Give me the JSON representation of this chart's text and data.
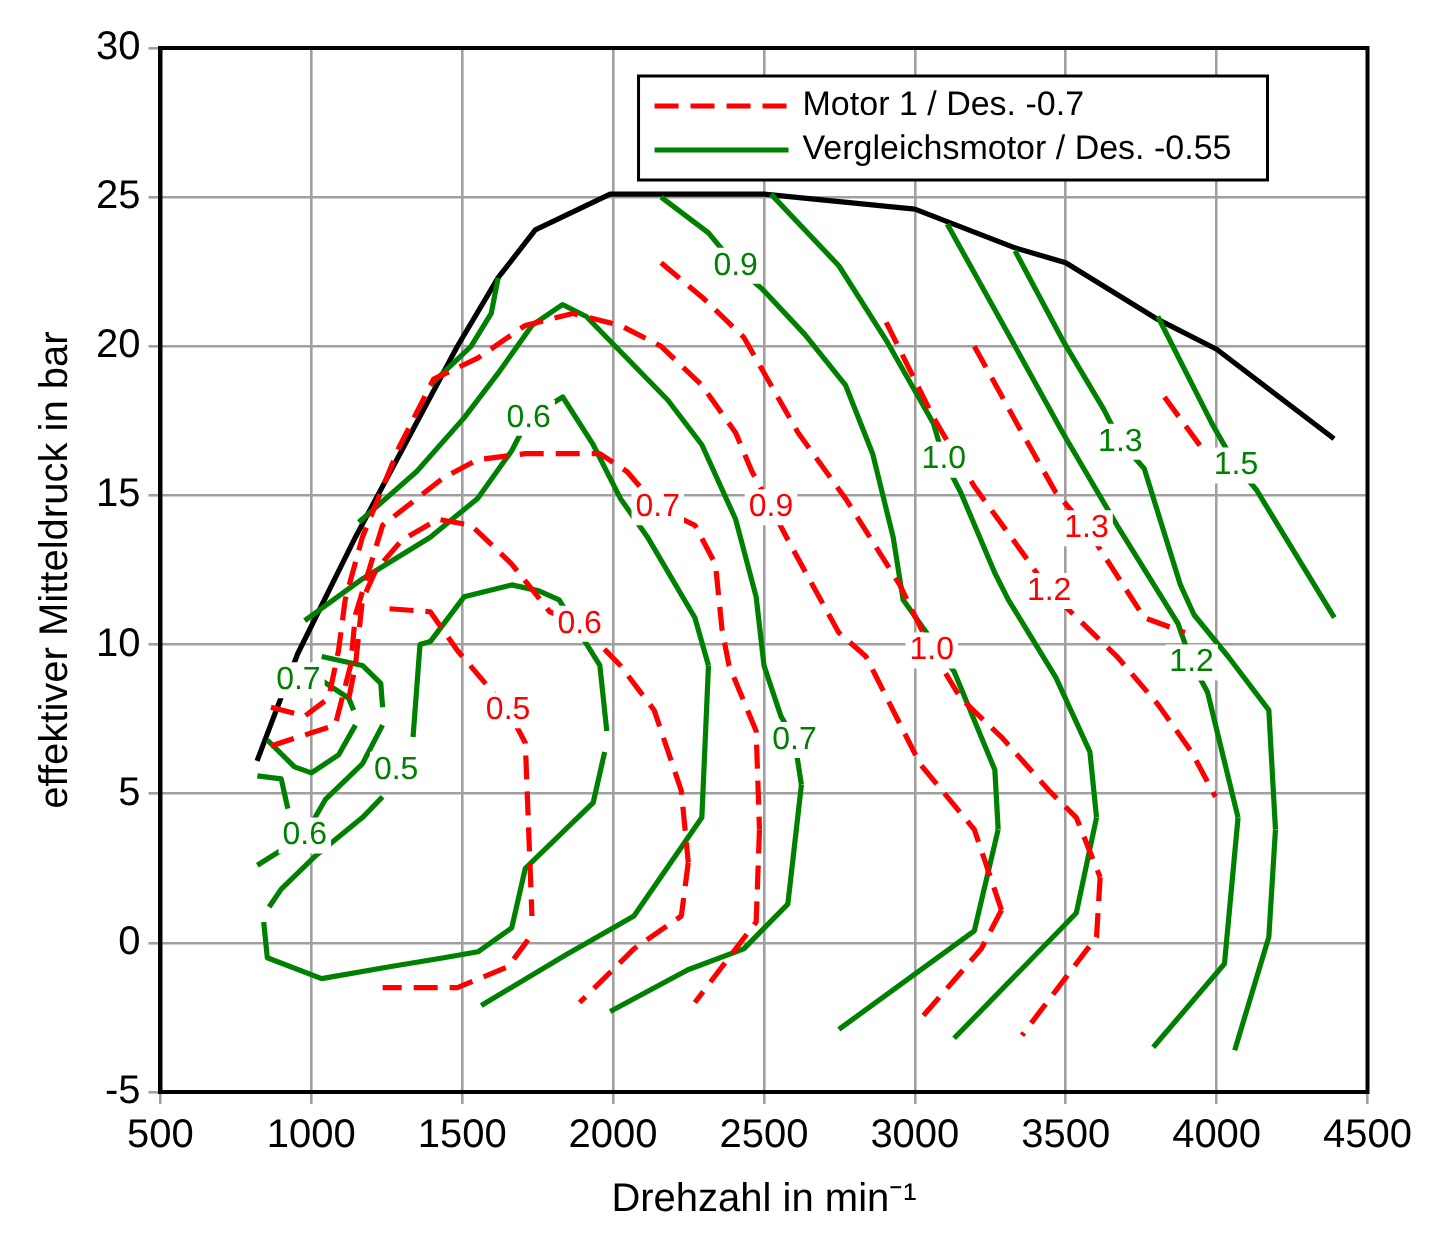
{
  "chart_data": {
    "type": "line",
    "xlabel": "Drehzahl in min⁻¹",
    "ylabel": "effektiver Mitteldruck in bar",
    "xlim": [
      500,
      4500
    ],
    "xticks": [
      500,
      1000,
      1500,
      2000,
      2500,
      3000,
      3500,
      4000,
      4500
    ],
    "ylim": [
      -5,
      30
    ],
    "yticks": [
      -5,
      0,
      5,
      10,
      15,
      20,
      25,
      30
    ],
    "grid": true,
    "legend": "top right",
    "series": [
      {
        "name": "Motor 1 / Des. -0.7",
        "color": "#ff0000",
        "line_style": "dashed",
        "x": [
          866,
          978,
          1057,
          1090,
          1112,
          1169,
          1290,
          1405,
          1551,
          1709,
          1866,
          2024,
          2159,
          2294,
          2406,
          2460,
          2523,
          2590,
          2748,
          2838,
          3017,
          3197,
          3287
        ],
        "values": [
          7.9,
          7.6,
          8.2,
          9.8,
          11.5,
          13.6,
          16.6,
          18.9,
          19.6,
          20.7,
          21.1,
          20.7,
          20.0,
          18.7,
          17.1,
          15.8,
          14.6,
          13.3,
          10.4,
          9.6,
          6.0,
          3.8,
          1.1
        ]
      },
      {
        "color": "#ff0000",
        "line_style": "dashed",
        "x": [
          3287,
          3220,
          3006
        ],
        "values": [
          1.1,
          -0.2,
          -2.7
        ]
      },
      {
        "color": "#ff0000",
        "line_style": "dashed",
        "x": [
          2159,
          2300,
          2433,
          2613,
          2770,
          2950,
          3056,
          3152,
          3287,
          3445,
          3535,
          3614
        ],
        "values": [
          22.8,
          21.6,
          20.3,
          17.1,
          14.9,
          12.0,
          9.8,
          8.2,
          6.9,
          5.1,
          4.2,
          2.2
        ]
      },
      {
        "color": "#ff0000",
        "line_style": "dashed",
        "x": [
          3614,
          3602,
          3355
        ],
        "values": [
          2.2,
          0.2,
          -3.1
        ]
      },
      {
        "color": "#ff0000",
        "line_style": "dashed",
        "x": [
          866,
          1079,
          1130,
          1146,
          1236,
          1439,
          1551,
          1709,
          1956,
          2046,
          2148,
          2271,
          2339,
          2361,
          2384,
          2474,
          2485
        ],
        "values": [
          6.6,
          7.3,
          9.3,
          11.0,
          14.0,
          15.6,
          16.2,
          16.4,
          16.4,
          15.8,
          14.6,
          14.0,
          12.7,
          10.5,
          9.3,
          7.1,
          3.8
        ]
      },
      {
        "color": "#ff0000",
        "line_style": "dashed",
        "x": [
          2485,
          2474,
          2271
        ],
        "values": [
          3.8,
          0.7,
          -2.0
        ]
      },
      {
        "color": "#ff0000",
        "line_style": "dashed",
        "x": [
          1124,
          1146,
          1169,
          1214,
          1300,
          1420,
          1530,
          1664,
          1790,
          1889,
          2024,
          2136,
          2226,
          2249
        ],
        "values": [
          8.2,
          9.3,
          11.5,
          12.5,
          13.5,
          14.2,
          14.0,
          12.7,
          11.1,
          10.7,
          9.3,
          7.8,
          5.1,
          2.7
        ]
      },
      {
        "color": "#ff0000",
        "line_style": "dashed",
        "x": [
          2249,
          2226,
          2069,
          1889
        ],
        "values": [
          2.7,
          0.9,
          -0.2,
          -2.0
        ]
      },
      {
        "color": "#ff0000",
        "line_style": "dashed",
        "x": [
          1259,
          1394,
          1484,
          1652,
          1709,
          1720,
          1731
        ],
        "values": [
          11.2,
          11.1,
          9.8,
          7.8,
          6.7,
          3.8,
          0.9
        ]
      },
      {
        "color": "#ff0000",
        "line_style": "dashed",
        "x": [
          1718,
          1652,
          1484,
          1236
        ],
        "values": [
          0.1,
          -0.8,
          -1.5,
          -1.5
        ]
      },
      {
        "color": "#ff0000",
        "line_style": "dashed",
        "x": [
          2905,
          3062,
          3197,
          3355,
          3445,
          3557,
          3670,
          3805,
          3917,
          3996
        ],
        "values": [
          20.8,
          17.6,
          15.3,
          13.1,
          11.8,
          10.7,
          9.6,
          8.0,
          6.4,
          4.9
        ]
      },
      {
        "color": "#ff0000",
        "line_style": "dashed",
        "x": [
          3197,
          3355,
          3467,
          3569,
          3760,
          3895
        ],
        "values": [
          20.0,
          17.1,
          15.1,
          13.9,
          10.9,
          10.4
        ]
      },
      {
        "color": "#ff0000",
        "line_style": "dashed",
        "x": [
          3827,
          3950
        ],
        "values": [
          18.3,
          16.6
        ]
      },
      {
        "name": "Vergleichsmotor / Des. -0.55",
        "color": "#008000",
        "line_style": "solid",
        "x": [
          1337,
          1360,
          1394,
          1506,
          1664,
          1754,
          1821,
          1956,
          1979
        ],
        "values": [
          6.9,
          10.0,
          10.1,
          11.6,
          12.0,
          11.8,
          11.5,
          9.3,
          7.1
        ]
      },
      {
        "color": "#008000",
        "line_style": "solid",
        "x": [
          1972,
          1934,
          1709,
          1664,
          1552,
          1439,
          1259,
          1034,
          854,
          842
        ],
        "values": [
          6.4,
          4.7,
          2.5,
          0.5,
          -0.3,
          -0.5,
          -0.8,
          -1.2,
          -0.5,
          0.7
        ]
      },
      {
        "color": "#008000",
        "line_style": "solid",
        "x": [
          860,
          900,
          1012,
          1169,
          1236
        ],
        "values": [
          1.2,
          1.8,
          2.9,
          4.2,
          4.9
        ]
      },
      {
        "color": "#008000",
        "line_style": "solid",
        "x": [
          821,
          978,
          1046,
          1169,
          1236
        ],
        "values": [
          2.6,
          3.6,
          4.8,
          6.0,
          7.3
        ]
      },
      {
        "color": "#008000",
        "line_style": "solid",
        "x": [
          1236,
          1230,
          1169,
          1034
        ],
        "values": [
          7.9,
          8.7,
          9.3,
          9.6
        ]
      },
      {
        "color": "#008000",
        "line_style": "solid",
        "x": [
          854,
          944,
          1000,
          1090,
          1146
        ],
        "values": [
          6.8,
          5.9,
          5.7,
          6.3,
          7.3
        ]
      },
      {
        "color": "#008000",
        "line_style": "solid",
        "x": [
          1140,
          1124,
          1034,
          957
        ],
        "values": [
          7.8,
          8.2,
          8.8,
          8.8
        ]
      },
      {
        "color": "#008000",
        "line_style": "solid",
        "x": [
          821,
          900,
          922
        ],
        "values": [
          5.6,
          5.5,
          4.5
        ]
      },
      {
        "color": "#008000",
        "line_style": "solid",
        "x": [
          1619,
          1596,
          1529,
          1394
        ],
        "values": [
          22.3,
          21.1,
          20.0,
          18.7
        ]
      },
      {
        "color": "#008000",
        "line_style": "solid",
        "x": [
          978,
          1169,
          1394,
          1551,
          1664,
          1720,
          1833,
          1934,
          2024,
          2114,
          2271,
          2316
        ],
        "values": [
          10.8,
          12.2,
          13.6,
          14.9,
          16.5,
          17.6,
          18.3,
          16.7,
          14.9,
          13.6,
          10.9,
          9.3
        ]
      },
      {
        "color": "#008000",
        "line_style": "solid",
        "x": [
          2316,
          2294,
          2069,
          1844,
          1563
        ],
        "values": [
          9.3,
          4.2,
          0.9,
          -0.4,
          -2.1
        ]
      },
      {
        "color": "#008000",
        "line_style": "solid",
        "x": [
          1157,
          1349,
          1506,
          1619,
          1731,
          1832,
          1911,
          2046,
          2181,
          2294,
          2406,
          2474,
          2500,
          2556,
          2601,
          2624
        ],
        "values": [
          14.1,
          15.8,
          17.6,
          19.1,
          20.7,
          21.4,
          21.0,
          19.6,
          18.2,
          16.7,
          14.2,
          11.6,
          9.3,
          7.6,
          6.8,
          5.3
        ]
      },
      {
        "color": "#008000",
        "line_style": "solid",
        "x": [
          2624,
          2579,
          2433,
          2248,
          1990
        ],
        "values": [
          5.3,
          1.3,
          -0.2,
          -0.9,
          -2.3
        ]
      },
      {
        "color": "#008000",
        "line_style": "solid",
        "x": [
          2159,
          2316,
          2406,
          2496,
          2635,
          2770,
          2860,
          2928,
          2961,
          3130,
          3265,
          3276
        ],
        "values": [
          25.0,
          23.8,
          22.7,
          21.9,
          20.4,
          18.7,
          16.4,
          13.6,
          11.5,
          9.1,
          5.8,
          3.8
        ]
      },
      {
        "color": "#008000",
        "line_style": "solid",
        "x": [
          3276,
          3197,
          2748
        ],
        "values": [
          3.8,
          0.4,
          -2.9
        ]
      },
      {
        "color": "#008000",
        "line_style": "solid",
        "x": [
          2523,
          2748,
          2905,
          3062,
          3096,
          3152,
          3265,
          3310,
          3467,
          3580,
          3602
        ],
        "values": [
          25.1,
          22.7,
          20.2,
          17.4,
          16.2,
          15.1,
          12.4,
          11.5,
          8.9,
          6.4,
          4.2
        ]
      },
      {
        "color": "#008000",
        "line_style": "solid",
        "x": [
          3602,
          3535,
          3130
        ],
        "values": [
          4.2,
          1.0,
          -3.2
        ]
      },
      {
        "color": "#008000",
        "line_style": "solid",
        "x": [
          3107,
          3310,
          3490,
          3670,
          3872,
          3917,
          3970,
          4071
        ],
        "values": [
          24.1,
          20.4,
          17.1,
          14.0,
          10.7,
          9.4,
          8.4,
          4.2
        ]
      },
      {
        "color": "#008000",
        "line_style": "solid",
        "x": [
          4071,
          4026,
          3790
        ],
        "values": [
          4.2,
          -0.7,
          -3.5
        ]
      },
      {
        "color": "#008000",
        "line_style": "solid",
        "x": [
          3332,
          3490,
          3625,
          3681,
          3760,
          3880,
          3925,
          4038,
          4173,
          4195
        ],
        "values": [
          23.2,
          20.2,
          17.9,
          16.8,
          15.9,
          12.0,
          11.0,
          9.6,
          7.8,
          3.8
        ]
      },
      {
        "color": "#008000",
        "line_style": "solid",
        "x": [
          4195,
          4173,
          4060
        ],
        "values": [
          3.8,
          0.2,
          -3.6
        ]
      },
      {
        "color": "#008000",
        "line_style": "solid",
        "x": [
          3805,
          3985,
          4064,
          4131,
          4390
        ],
        "values": [
          21.0,
          17.4,
          16.0,
          15.2,
          10.9
        ]
      },
      {
        "color": "#000000",
        "line_style": "solid",
        "x": [
          820,
          955,
          1146,
          1484,
          1619,
          1742,
          1990,
          2500,
          3000,
          3332,
          3500,
          3805,
          4000,
          4389
        ],
        "values": [
          6.1,
          9.7,
          13.6,
          20.0,
          22.3,
          23.9,
          25.1,
          25.1,
          24.6,
          23.3,
          22.8,
          20.9,
          19.9,
          16.9
        ]
      }
    ],
    "annotations": [
      {
        "text": "0.5",
        "x": 1652,
        "y": 7.8
      },
      {
        "text": "0.6",
        "x": 1889,
        "y": 10.7
      },
      {
        "text": "0.7",
        "x": 2148,
        "y": 14.6
      },
      {
        "text": "0.9",
        "x": 2523,
        "y": 14.6
      },
      {
        "text": "1.0",
        "x": 3056,
        "y": 9.8
      },
      {
        "text": "1.2",
        "x": 3445,
        "y": 11.8
      },
      {
        "text": "1.3",
        "x": 3569,
        "y": 13.9
      },
      {
        "text": "0.5",
        "x": 1281,
        "y": 5.8
      },
      {
        "text": "0.6",
        "x": 978,
        "y": 3.6
      },
      {
        "text": "0.7",
        "x": 957,
        "y": 8.8
      },
      {
        "text": "0.6",
        "x": 1720,
        "y": 17.6
      },
      {
        "text": "0.7",
        "x": 2601,
        "y": 6.8
      },
      {
        "text": "0.9",
        "x": 2406,
        "y": 22.7
      },
      {
        "text": "1.0",
        "x": 3096,
        "y": 16.2
      },
      {
        "text": "1.2",
        "x": 3917,
        "y": 9.4
      },
      {
        "text": "1.3",
        "x": 3681,
        "y": 16.8
      },
      {
        "text": "1.5",
        "x": 4064,
        "y": 16.0
      }
    ]
  }
}
